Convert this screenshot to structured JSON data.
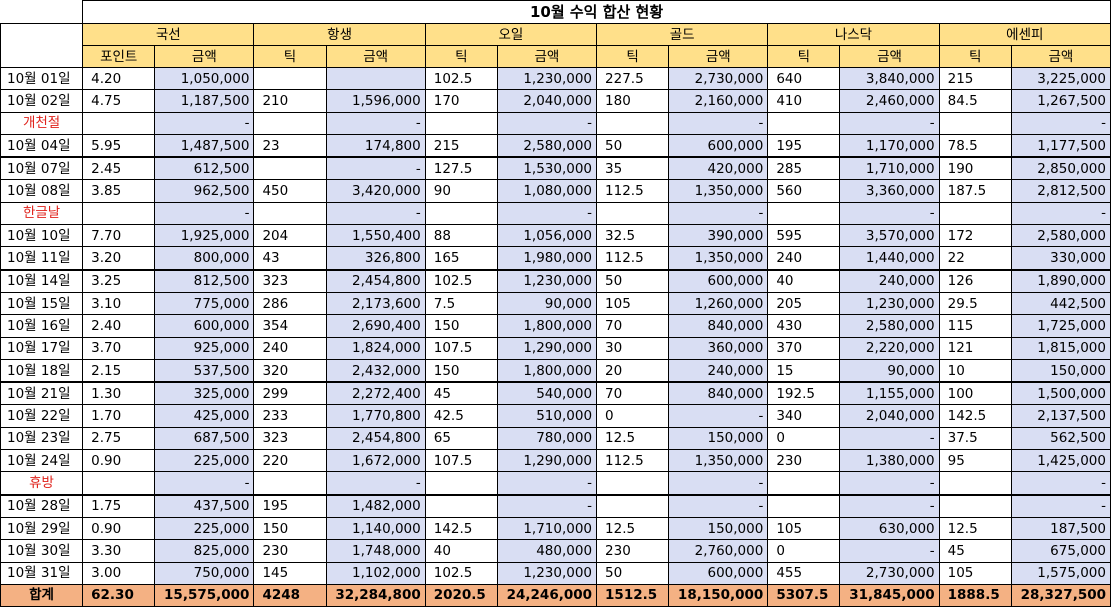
{
  "title": "10월 수익 합산 현황",
  "groups": [
    "국선",
    "항생",
    "오일",
    "골드",
    "나스닥",
    "에센피"
  ],
  "subheaders": {
    "g1_first": "포인트",
    "tick": "틱",
    "amount": "금액"
  },
  "rows": [
    {
      "date": "10월 01일",
      "holiday": false,
      "vals": [
        "4.20",
        "1,050,000",
        "",
        "",
        "102.5",
        "1,230,000",
        "227.5",
        "2,730,000",
        "640",
        "3,840,000",
        "215",
        "3,225,000"
      ]
    },
    {
      "date": "10월 02일",
      "holiday": false,
      "vals": [
        "4.75",
        "1,187,500",
        "210",
        "1,596,000",
        "170",
        "2,040,000",
        "180",
        "2,160,000",
        "410",
        "2,460,000",
        "84.5",
        "1,267,500"
      ]
    },
    {
      "date": "개천절",
      "holiday": true,
      "vals": [
        "",
        "-",
        "",
        "-",
        "",
        "-",
        "",
        "-",
        "",
        "-",
        "",
        "-"
      ]
    },
    {
      "date": "10월 04일",
      "holiday": false,
      "vals": [
        "5.95",
        "1,487,500",
        "23",
        "174,800",
        "215",
        "2,580,000",
        "50",
        "600,000",
        "195",
        "1,170,000",
        "78.5",
        "1,177,500"
      ]
    },
    {
      "date": "10월 07일",
      "holiday": false,
      "week": true,
      "vals": [
        "2.45",
        "612,500",
        "",
        "-",
        "127.5",
        "1,530,000",
        "35",
        "420,000",
        "285",
        "1,710,000",
        "190",
        "2,850,000"
      ]
    },
    {
      "date": "10월 08일",
      "holiday": false,
      "vals": [
        "3.85",
        "962,500",
        "450",
        "3,420,000",
        "90",
        "1,080,000",
        "112.5",
        "1,350,000",
        "560",
        "3,360,000",
        "187.5",
        "2,812,500"
      ]
    },
    {
      "date": "한글날",
      "holiday": true,
      "vals": [
        "",
        "-",
        "",
        "-",
        "",
        "-",
        "",
        "-",
        "",
        "-",
        "",
        "-"
      ]
    },
    {
      "date": "10월 10일",
      "holiday": false,
      "vals": [
        "7.70",
        "1,925,000",
        "204",
        "1,550,400",
        "88",
        "1,056,000",
        "32.5",
        "390,000",
        "595",
        "3,570,000",
        "172",
        "2,580,000"
      ]
    },
    {
      "date": "10월 11일",
      "holiday": false,
      "vals": [
        "3.20",
        "800,000",
        "43",
        "326,800",
        "165",
        "1,980,000",
        "112.5",
        "1,350,000",
        "240",
        "1,440,000",
        "22",
        "330,000"
      ]
    },
    {
      "date": "10월 14일",
      "holiday": false,
      "week": true,
      "vals": [
        "3.25",
        "812,500",
        "323",
        "2,454,800",
        "102.5",
        "1,230,000",
        "50",
        "600,000",
        "40",
        "240,000",
        "126",
        "1,890,000"
      ]
    },
    {
      "date": "10월 15일",
      "holiday": false,
      "vals": [
        "3.10",
        "775,000",
        "286",
        "2,173,600",
        "7.5",
        "90,000",
        "105",
        "1,260,000",
        "205",
        "1,230,000",
        "29.5",
        "442,500"
      ]
    },
    {
      "date": "10월 16일",
      "holiday": false,
      "vals": [
        "2.40",
        "600,000",
        "354",
        "2,690,400",
        "150",
        "1,800,000",
        "70",
        "840,000",
        "430",
        "2,580,000",
        "115",
        "1,725,000"
      ]
    },
    {
      "date": "10월 17일",
      "holiday": false,
      "vals": [
        "3.70",
        "925,000",
        "240",
        "1,824,000",
        "107.5",
        "1,290,000",
        "30",
        "360,000",
        "370",
        "2,220,000",
        "121",
        "1,815,000"
      ]
    },
    {
      "date": "10월 18일",
      "holiday": false,
      "vals": [
        "2.15",
        "537,500",
        "320",
        "2,432,000",
        "150",
        "1,800,000",
        "20",
        "240,000",
        "15",
        "90,000",
        "10",
        "150,000"
      ]
    },
    {
      "date": "10월 21일",
      "holiday": false,
      "week": true,
      "vals": [
        "1.30",
        "325,000",
        "299",
        "2,272,400",
        "45",
        "540,000",
        "70",
        "840,000",
        "192.5",
        "1,155,000",
        "100",
        "1,500,000"
      ]
    },
    {
      "date": "10월 22일",
      "holiday": false,
      "vals": [
        "1.70",
        "425,000",
        "233",
        "1,770,800",
        "42.5",
        "510,000",
        "0",
        "-",
        "340",
        "2,040,000",
        "142.5",
        "2,137,500"
      ]
    },
    {
      "date": "10월 23일",
      "holiday": false,
      "vals": [
        "2.75",
        "687,500",
        "323",
        "2,454,800",
        "65",
        "780,000",
        "12.5",
        "150,000",
        "0",
        "-",
        "37.5",
        "562,500"
      ]
    },
    {
      "date": "10월 24일",
      "holiday": false,
      "vals": [
        "0.90",
        "225,000",
        "220",
        "1,672,000",
        "107.5",
        "1,290,000",
        "112.5",
        "1,350,000",
        "230",
        "1,380,000",
        "95",
        "1,425,000"
      ]
    },
    {
      "date": "휴방",
      "holiday": true,
      "vals": [
        "",
        "-",
        "",
        "-",
        "",
        "-",
        "",
        "-",
        "",
        "-",
        "",
        "-"
      ]
    },
    {
      "date": "10월 28일",
      "holiday": false,
      "week": true,
      "vals": [
        "1.75",
        "437,500",
        "195",
        "1,482,000",
        "",
        "-",
        "",
        "-",
        "",
        "-",
        "",
        "-"
      ]
    },
    {
      "date": "10월 29일",
      "holiday": false,
      "vals": [
        "0.90",
        "225,000",
        "150",
        "1,140,000",
        "142.5",
        "1,710,000",
        "12.5",
        "150,000",
        "105",
        "630,000",
        "12.5",
        "187,500"
      ]
    },
    {
      "date": "10월 30일",
      "holiday": false,
      "vals": [
        "3.30",
        "825,000",
        "230",
        "1,748,000",
        "40",
        "480,000",
        "230",
        "2,760,000",
        "0",
        "-",
        "45",
        "675,000"
      ]
    },
    {
      "date": "10월 31일",
      "holiday": false,
      "vals": [
        "3.00",
        "750,000",
        "145",
        "1,102,000",
        "102.5",
        "1,230,000",
        "50",
        "600,000",
        "455",
        "2,730,000",
        "105",
        "1,575,000"
      ]
    }
  ],
  "total": {
    "label": "합계",
    "vals": [
      "62.30",
      "15,575,000",
      "4248",
      "32,284,800",
      "2020.5",
      "24,246,000",
      "1512.5",
      "18,150,000",
      "5307.5",
      "31,845,000",
      "1888.5",
      "28,327,500"
    ]
  },
  "colors": {
    "header": "#ffe08a",
    "amount_fill": "#d9def3",
    "total_fill": "#f4b183",
    "holiday_text": "#e0231c"
  }
}
